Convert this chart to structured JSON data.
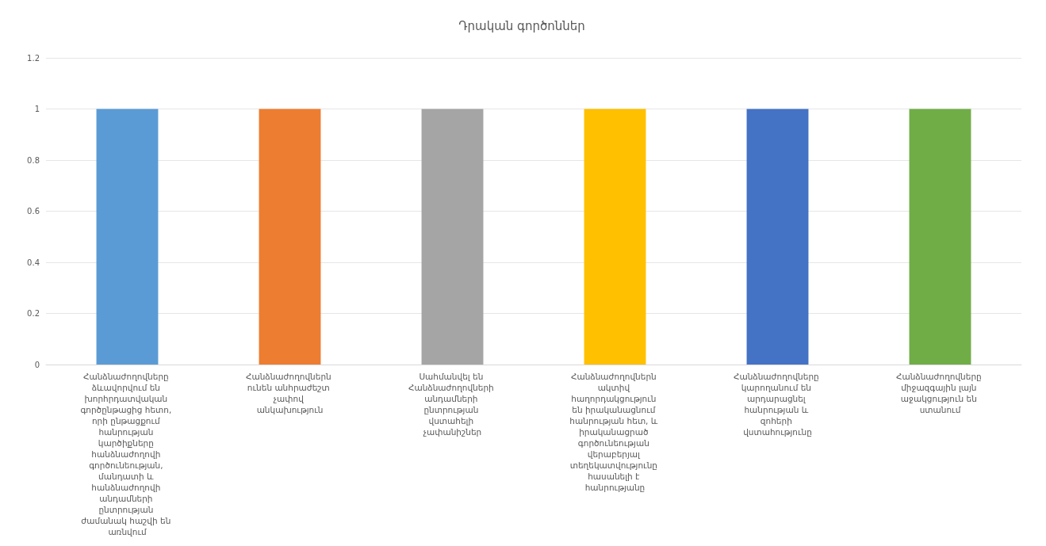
{
  "chart_data": {
    "type": "bar",
    "title": "Դրական գործոններ",
    "categories": [
      "Հանձնաժողովները ձևավորվում են խորհրդատվական գործընթացից հետո, որի ընթացքում հանրության կարծիքները հանձնաժողովի գործունեության, մանդատի և հանձնաժողովի անդամների ընտրության ժամանակ հաշվի են առնվում",
      "Հանձնաժողովներն ունեն անհրաժեշտ չափով անկախություն",
      "Սահմանվել են Հանձնաժողովների անդամների ընտրության վստահելի չափանիշներ",
      "Հանձնաժողովներն ակտիվ հաղորդակցություն են իրականացնում հանրության հետ, և իրականացրած գործունեության վերաբերյալ տեղեկատվությունը հասանելի է հանրությանը",
      "Հանձնաժողովները կարողանում են արդարացնել հանրության և զոհերի վստահությունը",
      "Հանձնաժողովները միջազգային լայն աջակցություն են ստանում"
    ],
    "values": [
      1,
      1,
      1,
      1,
      1,
      1
    ],
    "colors": [
      "#5b9bd5",
      "#ed7d31",
      "#a5a5a5",
      "#ffc000",
      "#4472c4",
      "#70ad47"
    ],
    "ylim": [
      0,
      1.2
    ],
    "yticks": [
      0,
      0.2,
      0.4,
      0.6,
      0.8,
      1,
      1.2
    ],
    "grid": "y"
  }
}
